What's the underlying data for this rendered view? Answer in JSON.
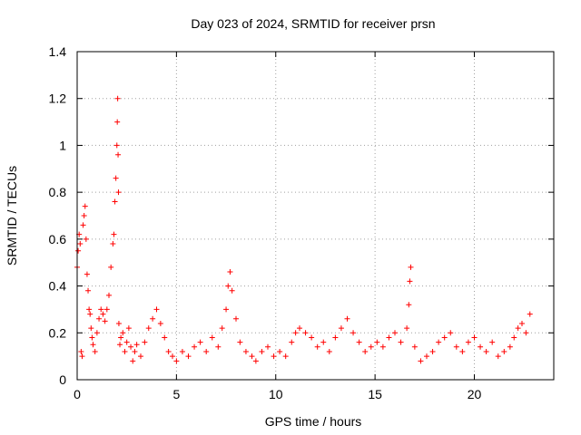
{
  "chart_data": {
    "type": "scatter",
    "title": "Day 023 of 2024, SRMTID for receiver prsn",
    "xlabel": "GPS time / hours",
    "ylabel": "SRMTID / TECUs",
    "xlim": [
      0,
      24
    ],
    "ylim": [
      0,
      1.4
    ],
    "x_ticks": [
      0,
      5,
      10,
      15,
      20
    ],
    "x_tick_labels": [
      "0",
      "5",
      "10",
      "15",
      "20"
    ],
    "y_ticks": [
      0,
      0.2,
      0.4,
      0.6,
      0.8,
      1.0,
      1.2,
      1.4
    ],
    "y_tick_labels": [
      "0",
      "0.2",
      "0.4",
      "0.6",
      "0.8",
      "1",
      "1.2",
      "1.4"
    ],
    "grid": true,
    "marker": "plus",
    "color": "#ff0000",
    "series": [
      {
        "name": "SRMTID",
        "x": [
          0.0,
          0.05,
          0.1,
          0.15,
          0.2,
          0.25,
          0.3,
          0.35,
          0.4,
          0.45,
          0.5,
          0.55,
          0.6,
          0.65,
          0.7,
          0.75,
          0.8,
          0.9,
          1.0,
          1.1,
          1.2,
          1.3,
          1.4,
          1.5,
          1.6,
          1.7,
          1.8,
          1.85,
          1.9,
          1.95,
          2.0,
          2.02,
          2.04,
          2.06,
          2.08,
          2.1,
          2.15,
          2.2,
          2.3,
          2.4,
          2.5,
          2.6,
          2.7,
          2.8,
          2.9,
          3.0,
          3.2,
          3.4,
          3.6,
          3.8,
          4.0,
          4.2,
          4.4,
          4.6,
          4.8,
          5.0,
          5.3,
          5.6,
          5.9,
          6.2,
          6.5,
          6.8,
          7.1,
          7.3,
          7.5,
          7.6,
          7.7,
          7.8,
          8.0,
          8.2,
          8.5,
          8.8,
          9.0,
          9.3,
          9.6,
          9.9,
          10.2,
          10.5,
          10.8,
          11.0,
          11.2,
          11.5,
          11.8,
          12.1,
          12.4,
          12.7,
          13.0,
          13.3,
          13.6,
          13.9,
          14.2,
          14.5,
          14.8,
          15.1,
          15.4,
          15.7,
          16.0,
          16.3,
          16.6,
          16.7,
          16.75,
          16.8,
          17.0,
          17.3,
          17.6,
          17.9,
          18.2,
          18.5,
          18.8,
          19.1,
          19.4,
          19.7,
          20.0,
          20.3,
          20.6,
          20.9,
          21.2,
          21.5,
          21.8,
          22.0,
          22.2,
          22.4,
          22.6,
          22.8
        ],
        "y": [
          0.48,
          0.55,
          0.62,
          0.58,
          0.12,
          0.1,
          0.66,
          0.7,
          0.74,
          0.6,
          0.45,
          0.38,
          0.3,
          0.28,
          0.22,
          0.18,
          0.15,
          0.12,
          0.2,
          0.26,
          0.3,
          0.28,
          0.25,
          0.3,
          0.36,
          0.48,
          0.58,
          0.62,
          0.76,
          0.86,
          1.0,
          1.1,
          1.2,
          0.96,
          0.8,
          0.24,
          0.15,
          0.18,
          0.2,
          0.12,
          0.16,
          0.22,
          0.14,
          0.08,
          0.12,
          0.15,
          0.1,
          0.16,
          0.22,
          0.26,
          0.3,
          0.24,
          0.18,
          0.12,
          0.1,
          0.08,
          0.12,
          0.1,
          0.14,
          0.16,
          0.12,
          0.18,
          0.14,
          0.22,
          0.3,
          0.4,
          0.46,
          0.38,
          0.26,
          0.16,
          0.12,
          0.1,
          0.08,
          0.12,
          0.14,
          0.1,
          0.12,
          0.1,
          0.16,
          0.2,
          0.22,
          0.2,
          0.18,
          0.14,
          0.16,
          0.12,
          0.18,
          0.22,
          0.26,
          0.2,
          0.16,
          0.12,
          0.14,
          0.16,
          0.14,
          0.18,
          0.2,
          0.16,
          0.22,
          0.32,
          0.42,
          0.48,
          0.14,
          0.08,
          0.1,
          0.12,
          0.16,
          0.18,
          0.2,
          0.14,
          0.12,
          0.16,
          0.18,
          0.14,
          0.12,
          0.16,
          0.1,
          0.12,
          0.14,
          0.18,
          0.22,
          0.24,
          0.2,
          0.28
        ]
      }
    ]
  }
}
